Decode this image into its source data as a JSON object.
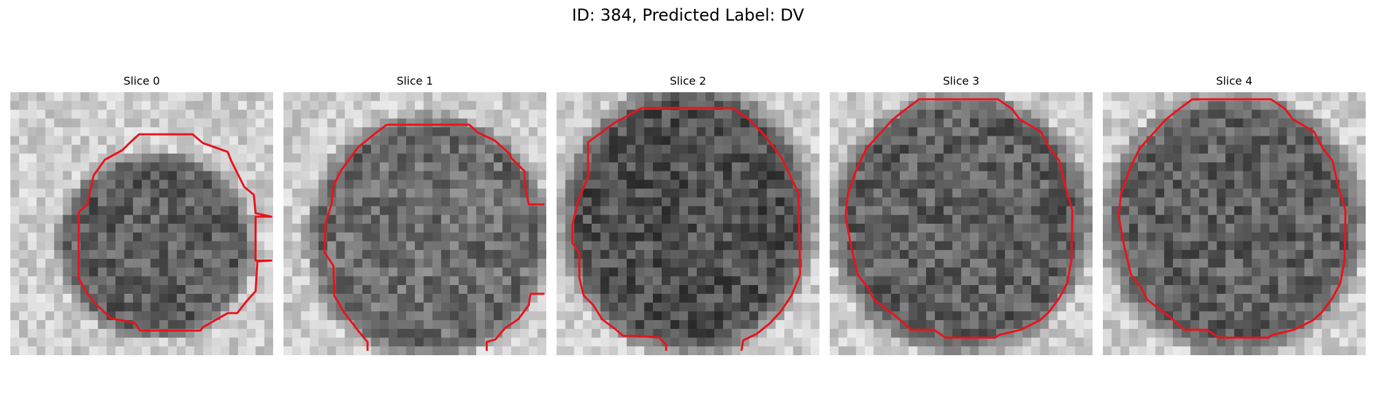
{
  "figure": {
    "title": "ID: 384, Predicted Label: DV"
  },
  "panels": [
    {
      "title": "Slice 0"
    },
    {
      "title": "Slice 1"
    },
    {
      "title": "Slice 2"
    },
    {
      "title": "Slice 3"
    },
    {
      "title": "Slice 4"
    }
  ],
  "colors": {
    "contour": "#e8141c",
    "background": "#ffffff"
  }
}
